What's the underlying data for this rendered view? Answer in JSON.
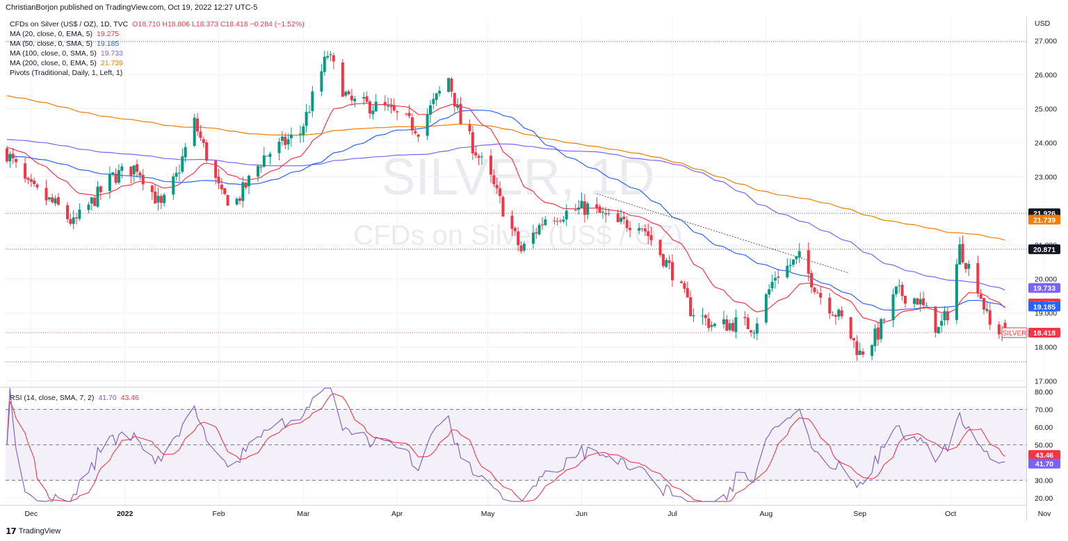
{
  "publisher": "ChristianBorjon published on TradingView.com, Oct 19, 2022 12:27 UTC-5",
  "footer_logo": "TradingView",
  "watermark": {
    "symbol": "SILVER, 1D",
    "name": "CFDs on Silver (US$ / OZ)"
  },
  "legend": {
    "main": {
      "label": "CFDs on Silver (US$ / OZ), 1D, TVC",
      "ohlc": "O18.710  H18.806  L18.373  C18.418  −0.284 (−1.52%)"
    },
    "ma": [
      {
        "label": "MA (20, close, 0, EMA, 5)",
        "value": "19.275",
        "color": "#f23645"
      },
      {
        "label": "MA (50, close, 0, SMA, 5)",
        "value": "19.185",
        "color": "#2962ff"
      },
      {
        "label": "MA (100, close, 0, SMA, 5)",
        "value": "19.733",
        "color": "#7b61ff"
      },
      {
        "label": "MA (200, close, 0, EMA, 5)",
        "value": "21.739",
        "color": "#f57c00"
      }
    ],
    "pivots": "Pivots (Traditional, Daily, 1, Left, 1)"
  },
  "currency": "USD",
  "price_ticks": [
    "27.000",
    "26.000",
    "25.000",
    "24.000",
    "23.000",
    "22.000",
    "21.000",
    "20.000",
    "19.000",
    "18.000",
    "17.000"
  ],
  "rsi_ticks": [
    "80.00",
    "70.00",
    "60.00",
    "50.00",
    "40.00",
    "30.00",
    "20.00"
  ],
  "rsi_legend": {
    "label": "RSI (14, close, SMA, 7, 2)",
    "rsi": "41.70",
    "ma": "43.46"
  },
  "time_labels": [
    "Dec",
    "2022",
    "Feb",
    "Mar",
    "Apr",
    "May",
    "Jun",
    "Jul",
    "Aug",
    "Sep",
    "Oct",
    "Nov"
  ],
  "price_tags": [
    {
      "text": "21.926",
      "price": 21.926,
      "bg": "#131722"
    },
    {
      "text": "21.739",
      "price": 21.739,
      "bg": "#f57c00"
    },
    {
      "text": "20.871",
      "price": 20.871,
      "bg": "#131722"
    },
    {
      "text": "19.733",
      "price": 19.733,
      "bg": "#7b61ff"
    },
    {
      "text": "19.275",
      "price": 19.275,
      "bg": "#f23645"
    },
    {
      "text": "19.185",
      "price": 19.185,
      "bg": "#2962ff"
    },
    {
      "text": "18.418",
      "price": 18.418,
      "bg": "#f23645"
    }
  ],
  "symbol_tag": "SILVER",
  "rsi_tags": [
    {
      "text": "43.46",
      "value": 43.46,
      "bg": "#f23645"
    },
    {
      "text": "41.70",
      "value": 41.7,
      "bg": "#7b61ff"
    }
  ],
  "chart_data": {
    "type": "candlestick",
    "ylim": [
      17,
      27.4
    ],
    "rsi_ylim": [
      18,
      82
    ],
    "colors": {
      "up": "#089981",
      "down": "#f23645",
      "ma20": "#f23645",
      "ma50": "#2962ff",
      "ma100": "#7b61ff",
      "ma200": "#f57c00",
      "rsi": "#7e57c2",
      "rsi_ma": "#f23645"
    },
    "horizontal_lines": [
      {
        "price": 26.97,
        "style": "dotted"
      },
      {
        "price": 21.926,
        "style": "dotted"
      },
      {
        "price": 20.871,
        "style": "dotted"
      },
      {
        "price": 18.418,
        "style": "dotted-red"
      },
      {
        "price": 17.56,
        "style": "dotted"
      }
    ],
    "trendline": [
      {
        "date": "2022-06-06",
        "price": 22.5
      },
      {
        "date": "2022-08-28",
        "price": 20.18
      }
    ],
    "x_start": "2021-11-23",
    "waypoints": [
      [
        "2021-11-23",
        23.7
      ],
      [
        "2021-11-30",
        22.7
      ],
      [
        "2021-12-10",
        22.1
      ],
      [
        "2021-12-15",
        21.6
      ],
      [
        "2021-12-28",
        23.0
      ],
      [
        "2022-01-05",
        23.3
      ],
      [
        "2022-01-13",
        22.1
      ],
      [
        "2022-01-18",
        23.0
      ],
      [
        "2022-01-24",
        24.6
      ],
      [
        "2022-02-02",
        22.4
      ],
      [
        "2022-02-07",
        22.3
      ],
      [
        "2022-02-16",
        23.6
      ],
      [
        "2022-02-28",
        24.3
      ],
      [
        "2022-03-04",
        25.3
      ],
      [
        "2022-03-09",
        26.6
      ],
      [
        "2022-03-16",
        25.2
      ],
      [
        "2022-03-28",
        25.0
      ],
      [
        "2022-04-08",
        24.4
      ],
      [
        "2022-04-18",
        25.9
      ],
      [
        "2022-04-22",
        24.6
      ],
      [
        "2022-05-02",
        22.9
      ],
      [
        "2022-05-12",
        20.8
      ],
      [
        "2022-05-20",
        21.8
      ],
      [
        "2022-06-03",
        22.1
      ],
      [
        "2022-06-13",
        21.6
      ],
      [
        "2022-06-20",
        21.7
      ],
      [
        "2022-07-01",
        20.2
      ],
      [
        "2022-07-07",
        19.1
      ],
      [
        "2022-07-15",
        18.6
      ],
      [
        "2022-07-22",
        18.7
      ],
      [
        "2022-07-28",
        18.6
      ],
      [
        "2022-08-04",
        20.1
      ],
      [
        "2022-08-12",
        20.6
      ],
      [
        "2022-08-19",
        19.5
      ],
      [
        "2022-08-26",
        18.8
      ],
      [
        "2022-09-01",
        17.8
      ],
      [
        "2022-09-07",
        18.4
      ],
      [
        "2022-09-13",
        19.6
      ],
      [
        "2022-09-20",
        19.4
      ],
      [
        "2022-09-27",
        18.5
      ],
      [
        "2022-09-30",
        19.0
      ],
      [
        "2022-10-04",
        20.9
      ],
      [
        "2022-10-10",
        19.8
      ],
      [
        "2022-10-14",
        18.6
      ],
      [
        "2022-10-19",
        18.418
      ]
    ]
  }
}
